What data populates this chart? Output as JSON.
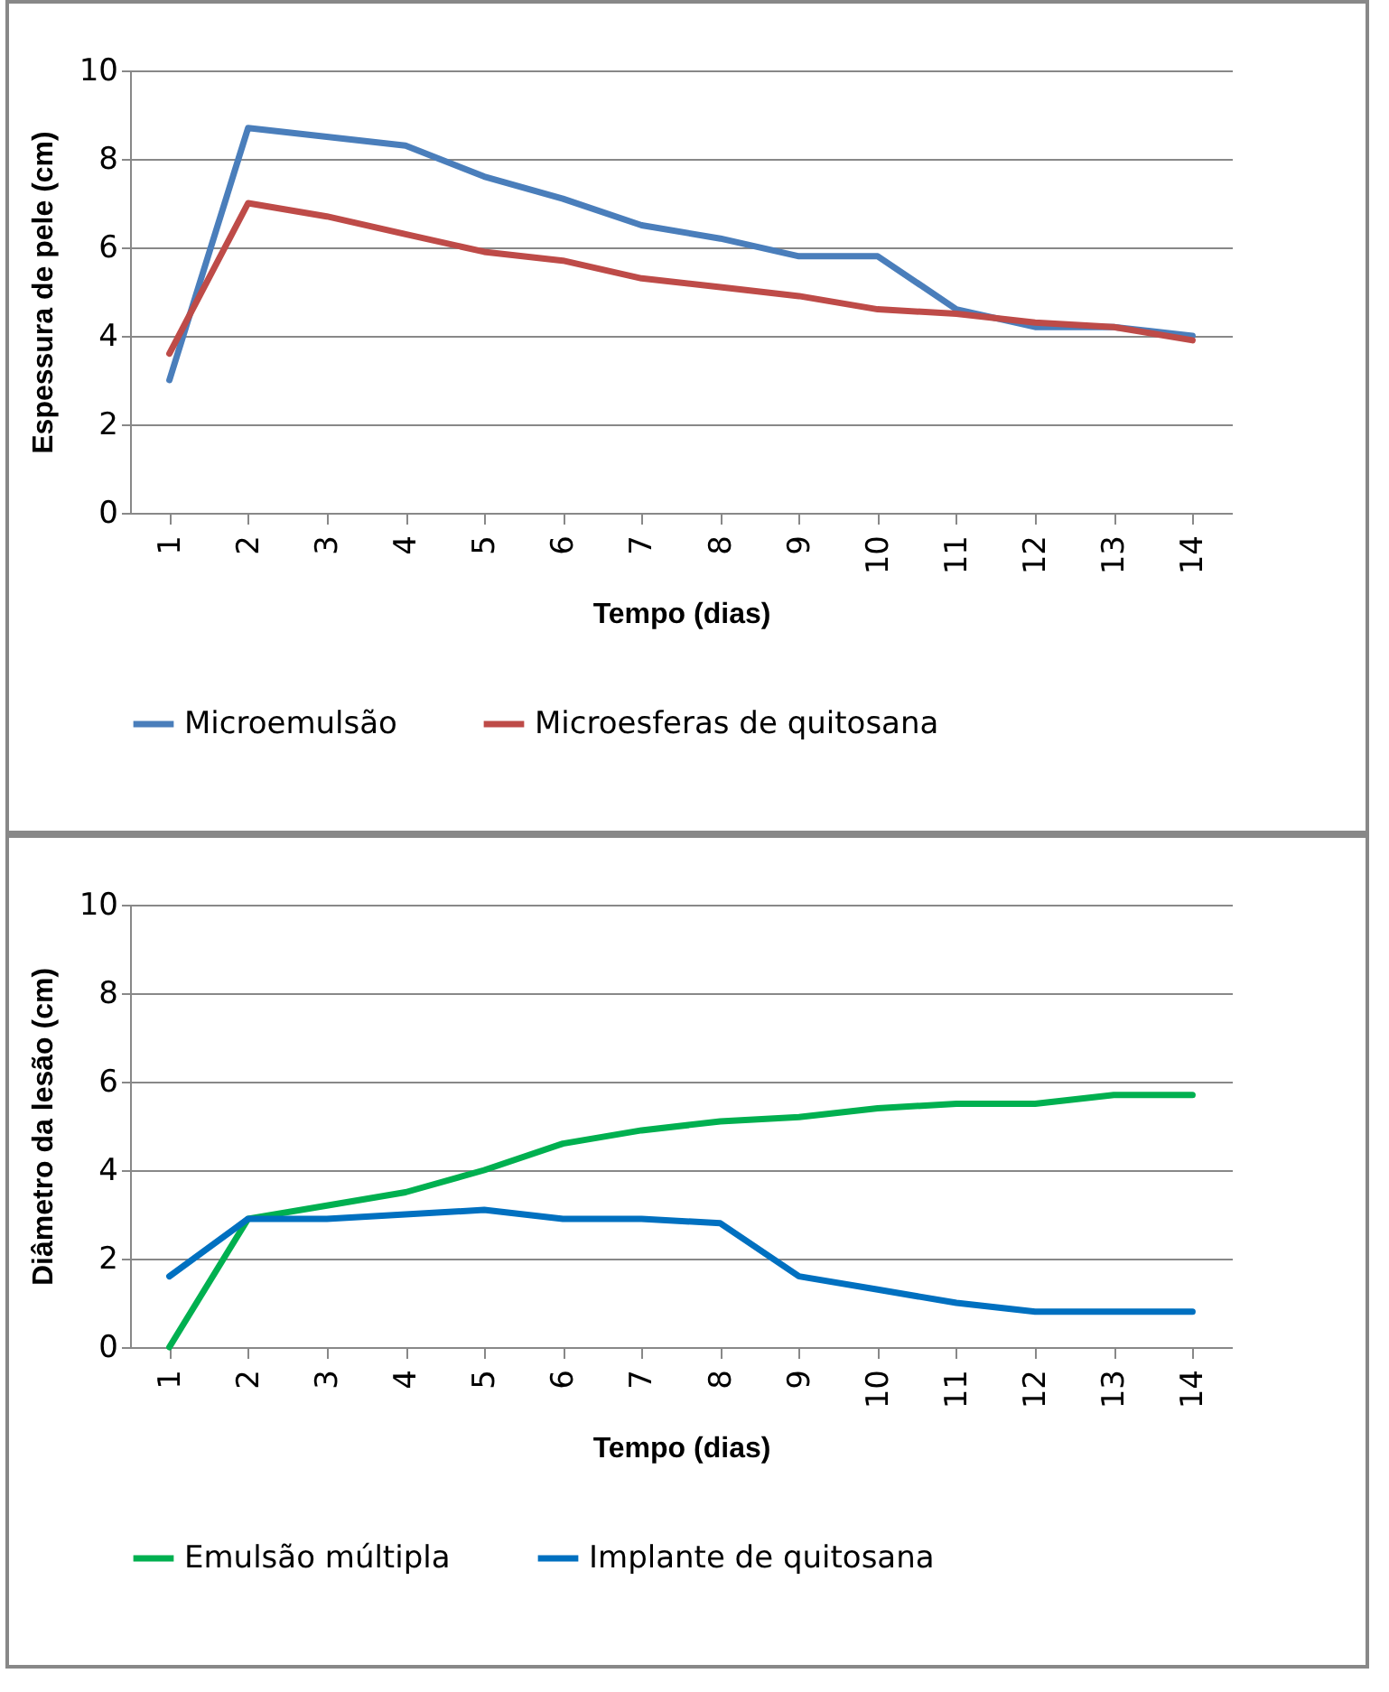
{
  "chart_data": [
    {
      "type": "line",
      "xlabel": "Tempo (dias)",
      "ylabel": "Espessura de pele (cm)",
      "categories": [
        "1",
        "2",
        "3",
        "4",
        "5",
        "6",
        "7",
        "8",
        "9",
        "10",
        "11",
        "12",
        "13",
        "14"
      ],
      "ylim": [
        0,
        10
      ],
      "yticks": [
        0,
        2,
        4,
        6,
        8,
        10
      ],
      "grid": "y",
      "legend": "bottom",
      "marker": "none",
      "line_style": "solid",
      "series": [
        {
          "name": "Microemulsão",
          "color": "#4a7ebb",
          "values": [
            3.0,
            8.7,
            8.5,
            8.3,
            7.6,
            7.1,
            6.5,
            6.2,
            5.8,
            5.8,
            4.6,
            4.2,
            4.2,
            4.0
          ]
        },
        {
          "name": "Microesferas de quitosana",
          "color": "#be4b48",
          "values": [
            3.6,
            7.0,
            6.7,
            6.3,
            5.9,
            5.7,
            5.3,
            5.1,
            4.9,
            4.6,
            4.5,
            4.3,
            4.2,
            3.9
          ]
        }
      ]
    },
    {
      "type": "line",
      "xlabel": "Tempo (dias)",
      "ylabel": "Diâmetro da lesão (cm)",
      "categories": [
        "1",
        "2",
        "3",
        "4",
        "5",
        "6",
        "7",
        "8",
        "9",
        "10",
        "11",
        "12",
        "13",
        "14"
      ],
      "ylim": [
        0,
        10
      ],
      "yticks": [
        0,
        2,
        4,
        6,
        8,
        10
      ],
      "grid": "y",
      "legend": "bottom",
      "marker": "none",
      "line_style": "solid",
      "series": [
        {
          "name": "Emulsão múltipla",
          "color": "#00b050",
          "values": [
            0,
            2.9,
            3.2,
            3.5,
            4.0,
            4.6,
            4.9,
            5.1,
            5.2,
            5.4,
            5.5,
            5.5,
            5.7,
            5.7
          ]
        },
        {
          "name": "Implante de quitosana",
          "color": "#0070c0",
          "values": [
            1.6,
            2.9,
            2.9,
            3.0,
            3.1,
            2.9,
            2.9,
            2.8,
            1.6,
            1.3,
            1.0,
            0.8,
            0.8,
            0.8
          ]
        }
      ]
    }
  ]
}
